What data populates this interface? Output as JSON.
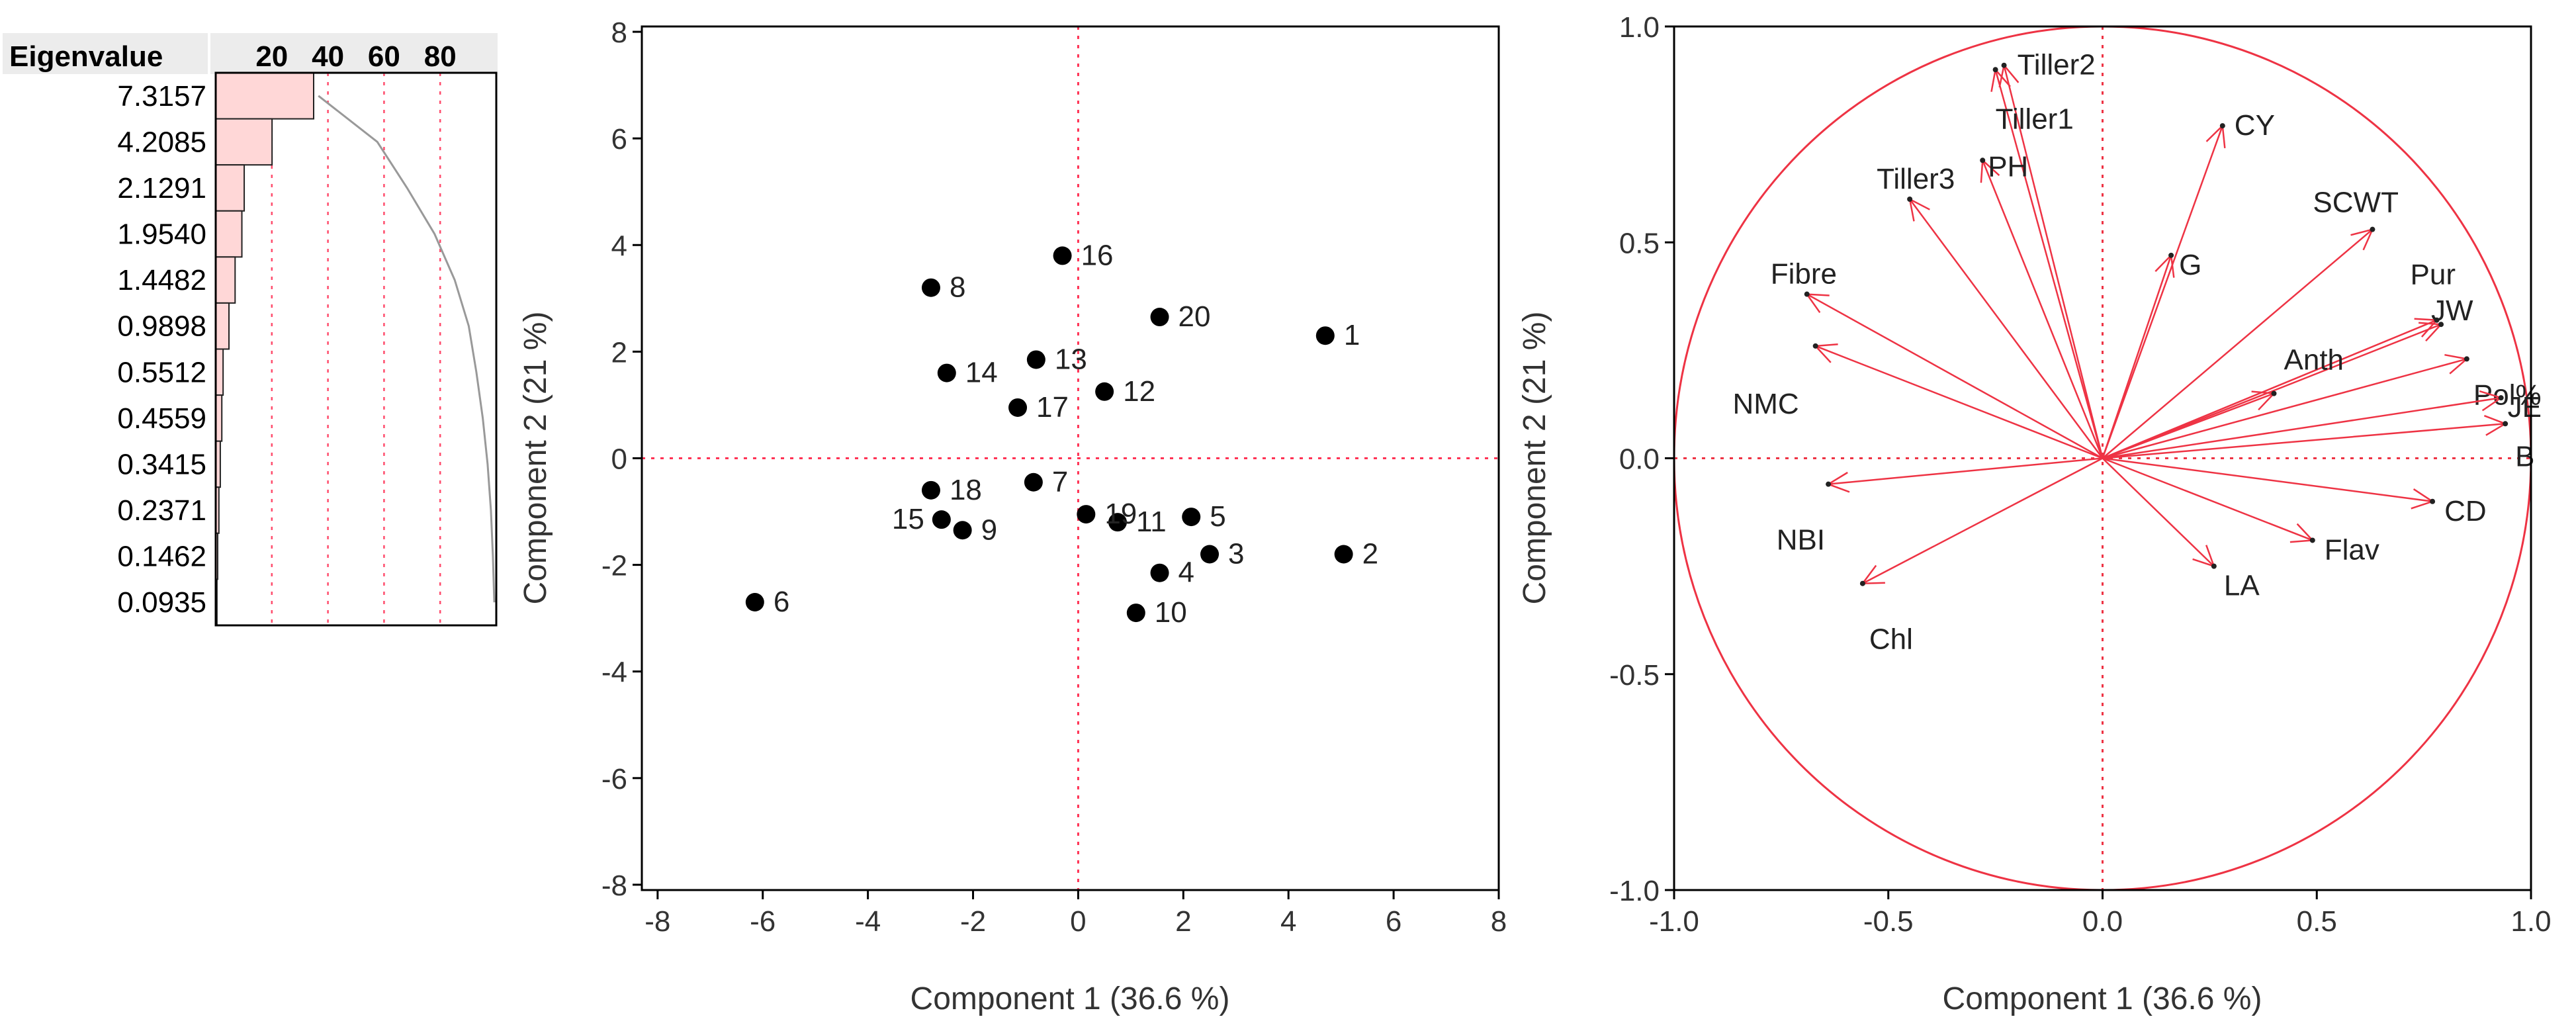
{
  "chart_data": [
    {
      "type": "bar",
      "name": "eigenvalue-scree",
      "header": "Eigenvalue",
      "categories": [
        "7.3157",
        "4.2085",
        "2.1291",
        "1.9540",
        "1.4482",
        "0.9898",
        "0.5512",
        "0.4559",
        "0.3415",
        "0.2371",
        "0.1462",
        "0.0935"
      ],
      "values": [
        7.3157,
        4.2085,
        2.1291,
        1.954,
        1.4482,
        0.9898,
        0.5512,
        0.4559,
        0.3415,
        0.2371,
        0.1462,
        0.0935
      ],
      "percent_ticks": [
        "20",
        "40",
        "60",
        "80"
      ],
      "percent_tick_values": [
        20,
        40,
        60,
        80
      ],
      "percent_range": [
        0,
        100
      ],
      "cumulative_percent": [
        36.6,
        57.6,
        68.2,
        78.0,
        85.2,
        90.2,
        92.9,
        95.2,
        96.9,
        98.1,
        98.8,
        99.3
      ],
      "bar_color": "#ffd7d7",
      "line_color": "#999999",
      "grid_color": "#ff4d6d"
    },
    {
      "type": "scatter",
      "name": "score-plot",
      "xlabel": "Component 1  (36.6 %)",
      "ylabel": "Component 2  (21 %)",
      "xlim": [
        -8.3,
        8
      ],
      "ylim": [
        -8.1,
        8.1
      ],
      "xticks": [
        "-8",
        "-6",
        "-4",
        "-2",
        "0",
        "2",
        "4",
        "6",
        "8"
      ],
      "xtick_values": [
        -8,
        -6,
        -4,
        -2,
        0,
        2,
        4,
        6,
        8
      ],
      "yticks": [
        "-8",
        "-6",
        "-4",
        "-2",
        "0",
        "2",
        "4",
        "6",
        "8"
      ],
      "ytick_values": [
        -8,
        -6,
        -4,
        -2,
        0,
        2,
        4,
        6,
        8
      ],
      "reference_lines": {
        "x": 0,
        "y": 0,
        "color": "#ff3355"
      },
      "points": [
        {
          "label": "1",
          "x": 4.7,
          "y": 2.3
        },
        {
          "label": "2",
          "x": 5.05,
          "y": -1.8
        },
        {
          "label": "3",
          "x": 2.5,
          "y": -1.8
        },
        {
          "label": "4",
          "x": 1.55,
          "y": -2.15
        },
        {
          "label": "5",
          "x": 2.15,
          "y": -1.1
        },
        {
          "label": "6",
          "x": -6.15,
          "y": -2.7
        },
        {
          "label": "7",
          "x": -0.85,
          "y": -0.45
        },
        {
          "label": "8",
          "x": -2.8,
          "y": 3.2
        },
        {
          "label": "9",
          "x": -2.2,
          "y": -1.35
        },
        {
          "label": "10",
          "x": 1.1,
          "y": -2.9
        },
        {
          "label": "11",
          "x": 0.75,
          "y": -1.2
        },
        {
          "label": "12",
          "x": 0.5,
          "y": 1.25
        },
        {
          "label": "13",
          "x": -0.8,
          "y": 1.85
        },
        {
          "label": "14",
          "x": -2.5,
          "y": 1.6
        },
        {
          "label": "15",
          "x": -2.6,
          "y": -1.15
        },
        {
          "label": "16",
          "x": -0.3,
          "y": 3.8
        },
        {
          "label": "17",
          "x": -1.15,
          "y": 0.95
        },
        {
          "label": "18",
          "x": -2.8,
          "y": -0.6
        },
        {
          "label": "19",
          "x": 0.15,
          "y": -1.05
        },
        {
          "label": "20",
          "x": 1.55,
          "y": 2.65
        }
      ]
    },
    {
      "type": "scatter",
      "name": "loading-plot",
      "subtype": "biplot-vectors",
      "xlabel": "Component 1  (36.6 %)",
      "ylabel": "Component 2  (21 %)",
      "xlim": [
        -1.0,
        1.0
      ],
      "ylim": [
        -1.0,
        1.0
      ],
      "xticks": [
        "-1.0",
        "-0.5",
        "0.0",
        "0.5",
        "1.0"
      ],
      "xtick_values": [
        -1.0,
        -0.5,
        0.0,
        0.5,
        1.0
      ],
      "yticks": [
        "-1.0",
        "-0.5",
        "0.0",
        "0.5",
        "1.0"
      ],
      "ytick_values": [
        -1.0,
        -0.5,
        0.0,
        0.5,
        1.0
      ],
      "unit_circle": true,
      "vector_color": "#ee3344",
      "vectors": [
        {
          "label": "Tiller2",
          "x": -0.23,
          "y": 0.91
        },
        {
          "label": "Tiller1",
          "x": -0.25,
          "y": 0.9
        },
        {
          "label": "PH",
          "x": -0.28,
          "y": 0.69
        },
        {
          "label": "Tiller3",
          "x": -0.45,
          "y": 0.6
        },
        {
          "label": "CY",
          "x": 0.28,
          "y": 0.77
        },
        {
          "label": "G",
          "x": 0.16,
          "y": 0.47
        },
        {
          "label": "SCWT",
          "x": 0.63,
          "y": 0.53
        },
        {
          "label": "Pur",
          "x": 0.78,
          "y": 0.32
        },
        {
          "label": "JW",
          "x": 0.79,
          "y": 0.31
        },
        {
          "label": "Pol%",
          "x": 0.85,
          "y": 0.23
        },
        {
          "label": "Anth",
          "x": 0.4,
          "y": 0.15
        },
        {
          "label": "JE",
          "x": 0.93,
          "y": 0.14
        },
        {
          "label": "B",
          "x": 0.94,
          "y": 0.08
        },
        {
          "label": "CD",
          "x": 0.77,
          "y": -0.1
        },
        {
          "label": "Flav",
          "x": 0.49,
          "y": -0.19
        },
        {
          "label": "LA",
          "x": 0.26,
          "y": -0.25
        },
        {
          "label": "Fibre",
          "x": -0.69,
          "y": 0.38
        },
        {
          "label": "NMC",
          "x": -0.67,
          "y": 0.26
        },
        {
          "label": "NBI",
          "x": -0.64,
          "y": -0.06
        },
        {
          "label": "Chl",
          "x": -0.56,
          "y": -0.29
        }
      ]
    }
  ]
}
